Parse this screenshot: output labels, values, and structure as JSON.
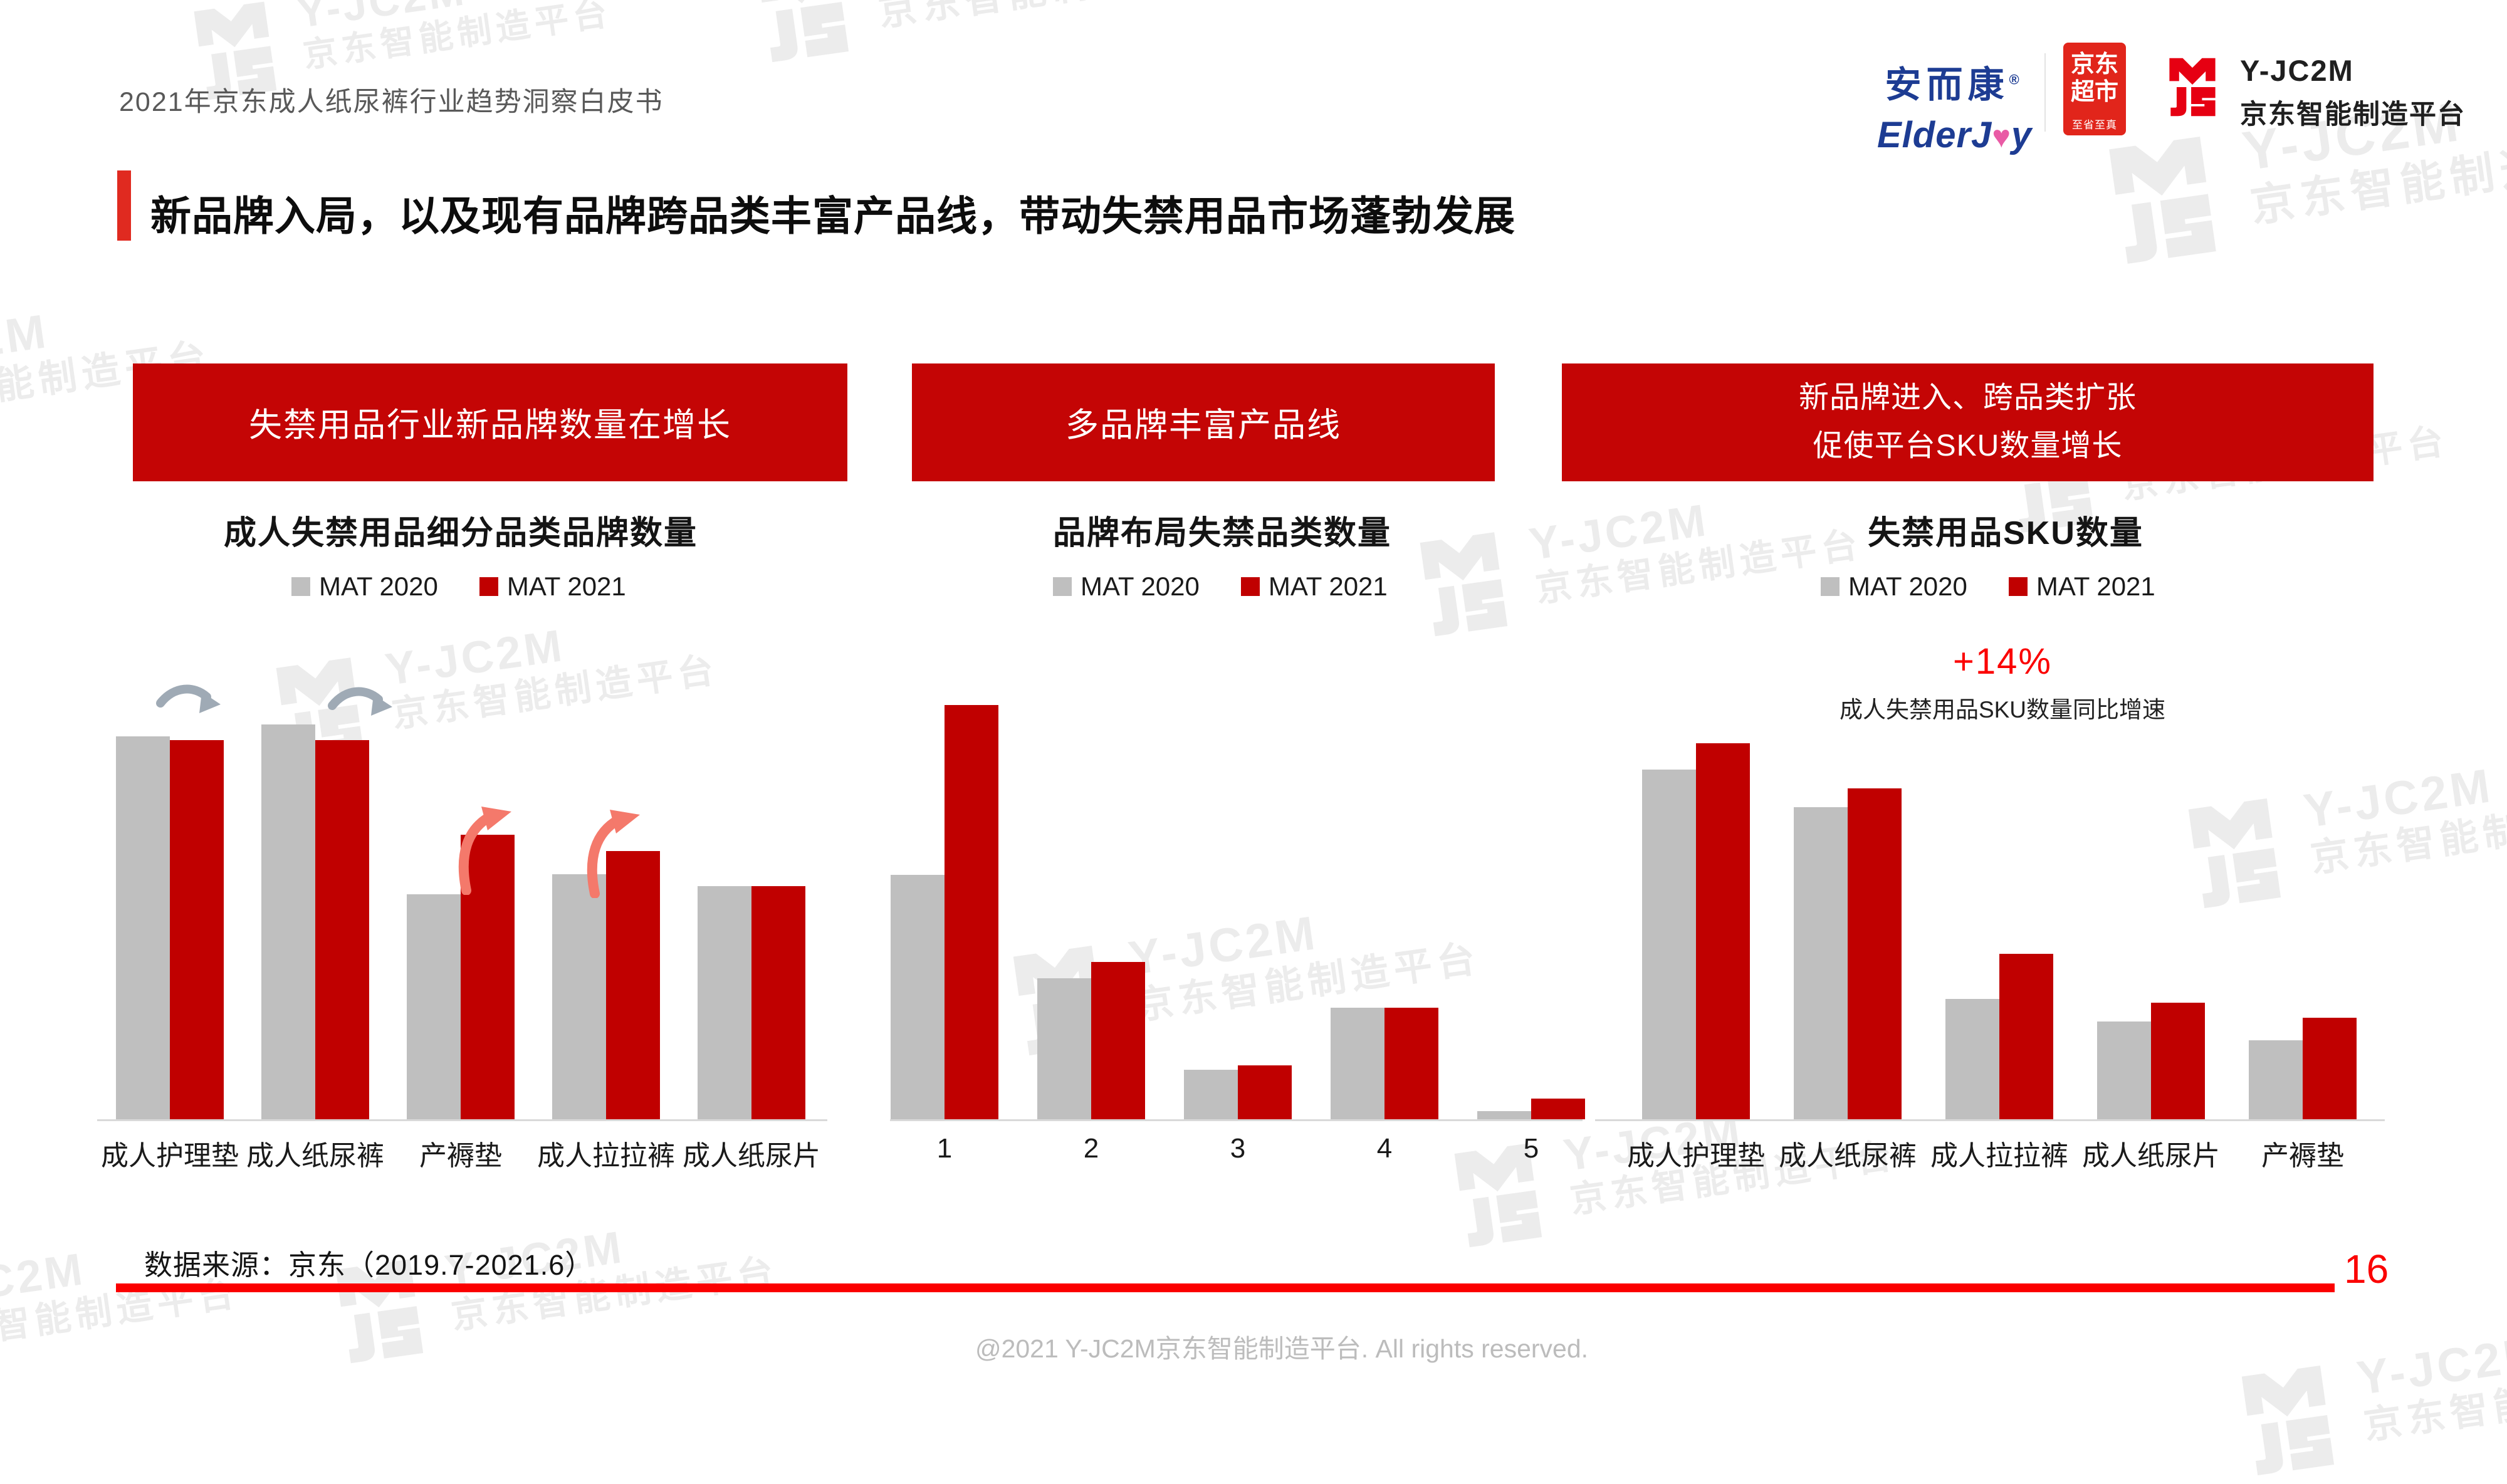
{
  "header": {
    "doc_title": "2021年京东成人纸尿裤行业趋势洞察白皮书"
  },
  "logos": {
    "elderjoy_cn": "安而康",
    "elderjoy_reg": "®",
    "elderjoy_en_pre": "ElderJ",
    "elderjoy_heart": "♥",
    "elderjoy_en_post": "y",
    "jd_badge_line1": "京东",
    "jd_badge_line2": "超市",
    "jd_badge_sub": "至省至真",
    "jc2m_name": "Y-JC2M",
    "jc2m_platform": "京东智能制造平台"
  },
  "title": "新品牌入局，以及现有品牌跨品类丰富产品线，带动失禁用品市场蓬勃发展",
  "watermark": {
    "line1": "Y-JC2M",
    "line2": "京东智能制造平台"
  },
  "sections": [
    {
      "banner_lines": [
        "失禁用品行业新品牌数量在增长"
      ],
      "subtitle": "成人失禁用品细分品类品牌数量"
    },
    {
      "banner_lines": [
        "多品牌丰富产品线"
      ],
      "subtitle": "品牌布局失禁品类数量"
    },
    {
      "banner_lines": [
        "新品牌进入、跨品类扩张",
        "促使平台SKU数量增长"
      ],
      "subtitle": "失禁用品SKU数量"
    }
  ],
  "legend": {
    "mat2020": "MAT 2020",
    "mat2021": "MAT 2021"
  },
  "annotation": {
    "growth": "+14%",
    "growth_note": "成人失禁用品SKU数量同比增速"
  },
  "footer": {
    "source": "数据来源：京东（2019.7-2021.6）",
    "page_number": "16",
    "copyright": "@2021 Y-JC2M京东智能制造平台. All rights reserved."
  },
  "colors": {
    "bar_gray": "#BFBFBF",
    "bar_red": "#C00000",
    "banner_red": "#C40505",
    "bright_red": "#FB0000",
    "accent_red": "#E02A20",
    "gray_arrow": "#9FAAB5",
    "salmon_arrow": "#F4796B",
    "watermark": "#ECECEC"
  },
  "chart_data": [
    {
      "type": "bar",
      "title": "成人失禁用品细分品类品牌数量",
      "categories": [
        "成人护理垫",
        "成人纸尿裤",
        "产褥垫",
        "成人拉拉裤",
        "成人纸尿片"
      ],
      "series": [
        {
          "name": "MAT 2020",
          "values": [
            97,
            100,
            57,
            62,
            59
          ]
        },
        {
          "name": "MAT 2021",
          "values": [
            96,
            96,
            72,
            68,
            59
          ]
        }
      ],
      "ylabel": "品牌数量（相对指数，无数值轴标注）",
      "legend_position": "top",
      "grid": false,
      "annotations": [
        "成人护理垫、成人纸尿裤上方为灰色下行弯曲箭头",
        "产褥垫、成人拉拉裤上方为红色上行弯曲箭头"
      ]
    },
    {
      "type": "bar",
      "title": "品牌布局失禁品类数量",
      "categories": [
        "1",
        "2",
        "3",
        "4",
        "5"
      ],
      "series": [
        {
          "name": "MAT 2020",
          "values": [
            59,
            34,
            12,
            27,
            2
          ]
        },
        {
          "name": "MAT 2021",
          "values": [
            100,
            38,
            13,
            27,
            5
          ]
        }
      ],
      "ylabel": "品牌数量（相对指数，无数值轴标注）",
      "legend_position": "top",
      "grid": false
    },
    {
      "type": "bar",
      "title": "失禁用品SKU数量",
      "categories": [
        "成人护理垫",
        "成人纸尿裤",
        "成人拉拉裤",
        "成人纸尿片",
        "产褥垫"
      ],
      "series": [
        {
          "name": "MAT 2020",
          "values": [
            93,
            83,
            32,
            26,
            21
          ]
        },
        {
          "name": "MAT 2021",
          "values": [
            100,
            88,
            44,
            31,
            27
          ]
        }
      ],
      "ylabel": "SKU数量（相对指数，无数值轴标注）",
      "legend_position": "top",
      "grid": false,
      "annotations": [
        "+14% 成人失禁用品SKU数量同比增速"
      ]
    }
  ]
}
